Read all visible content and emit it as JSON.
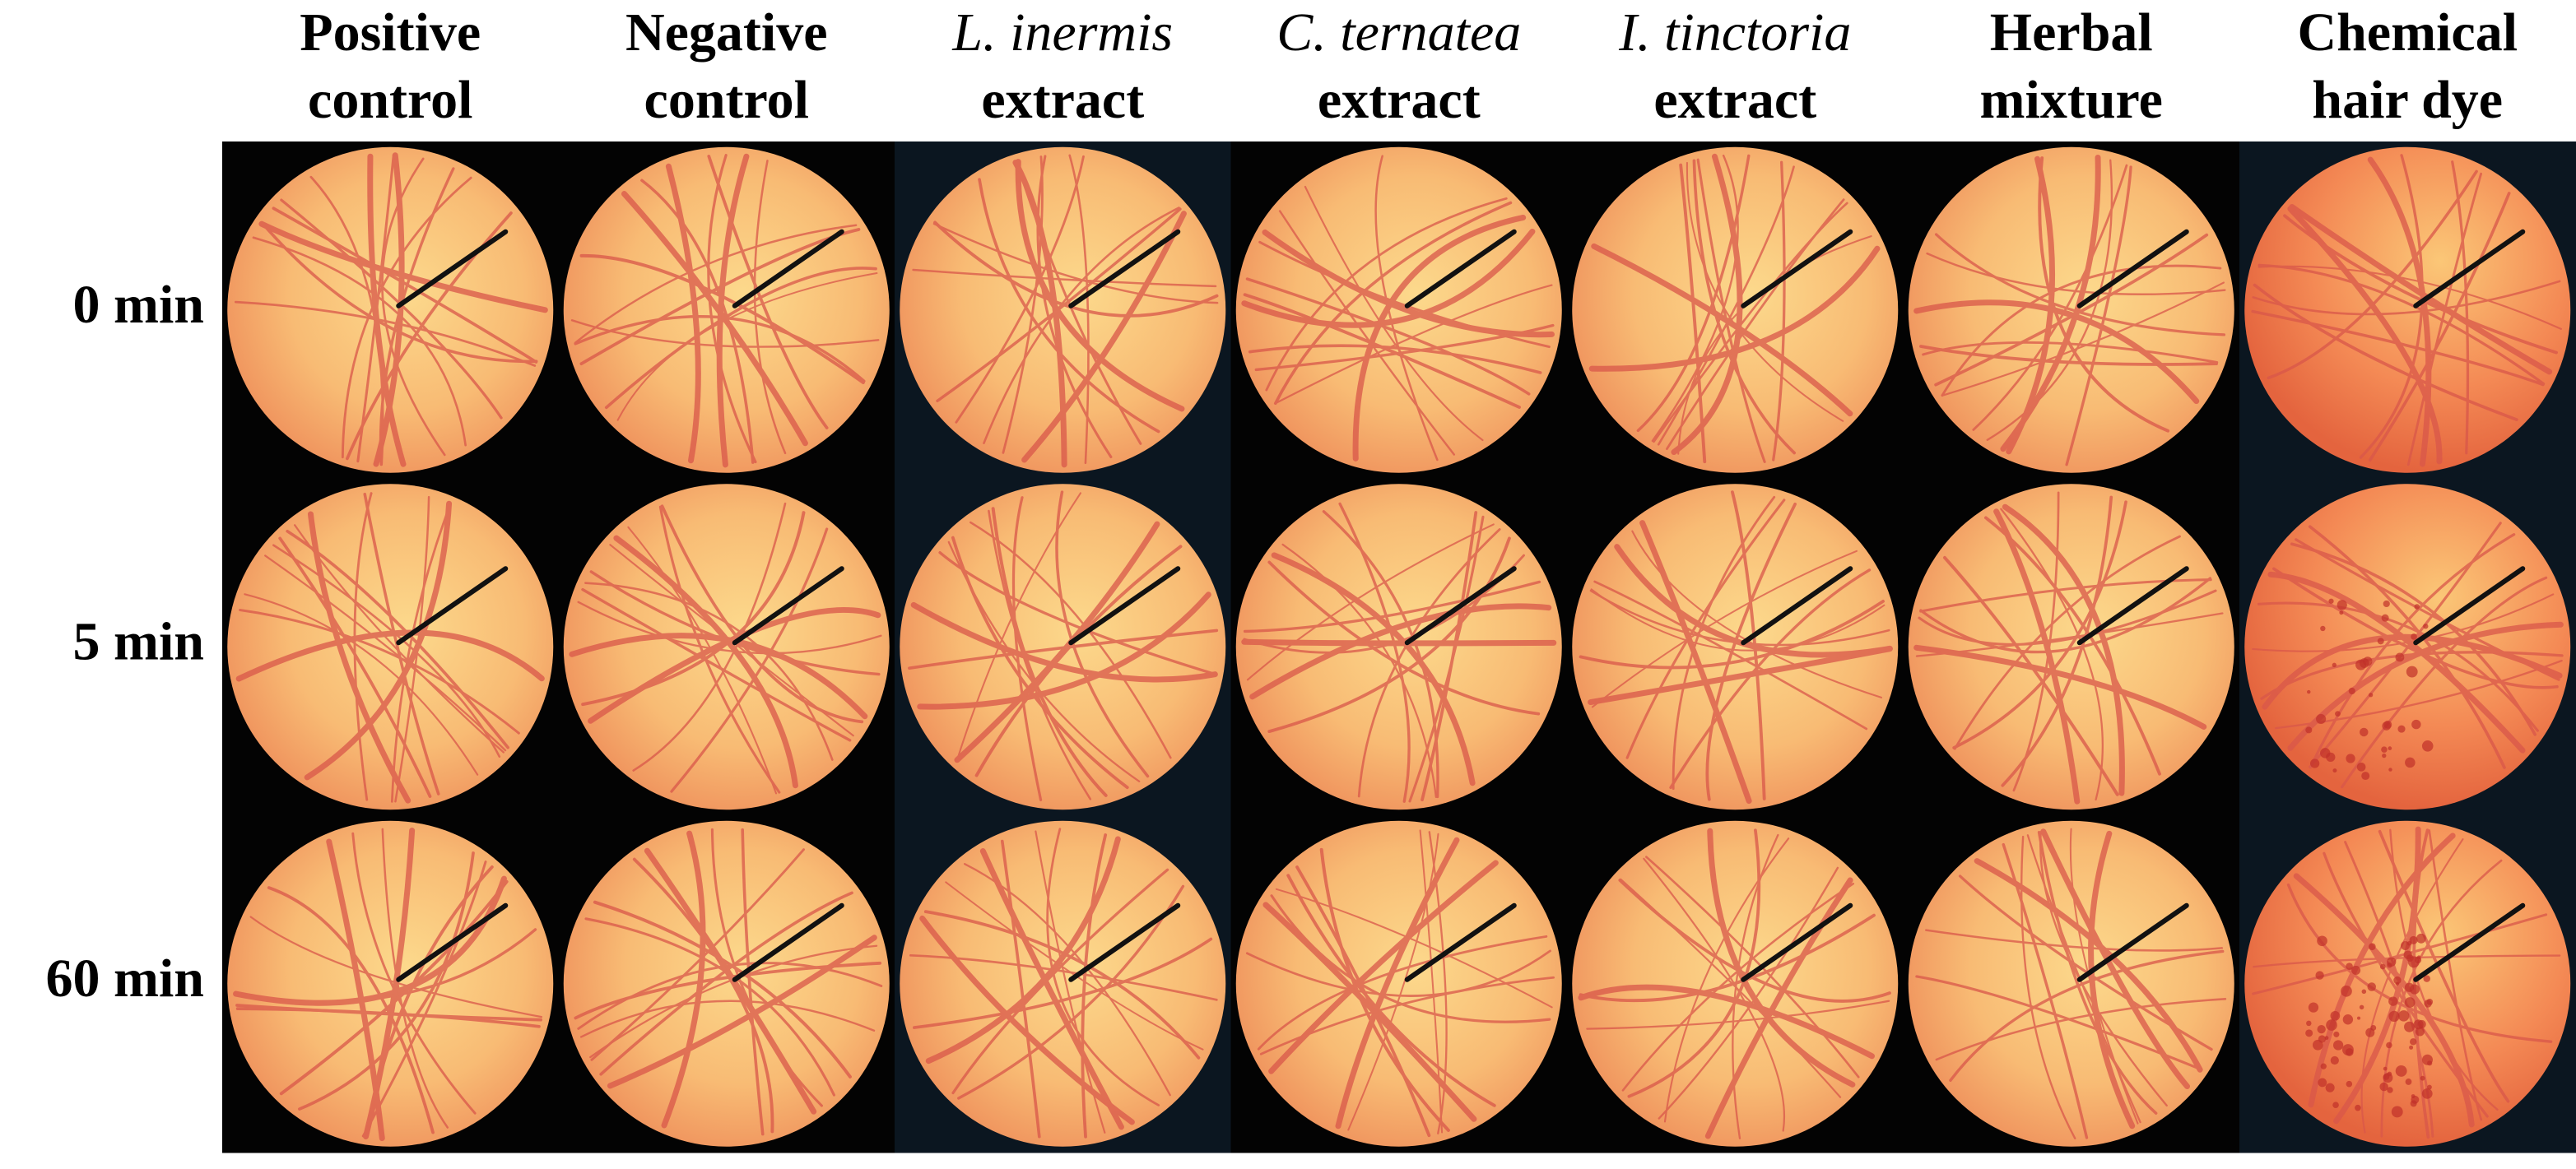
{
  "columns": [
    {
      "lines": [
        "Positive",
        "control"
      ]
    },
    {
      "lines": [
        "Negative",
        "control"
      ]
    },
    {
      "lines": [
        "L. inermis",
        "extract"
      ]
    },
    {
      "lines": [
        "C. ternatea",
        "extract"
      ]
    },
    {
      "lines": [
        "I. tinctoria",
        "extract"
      ]
    },
    {
      "lines": [
        "Herbal",
        "mixture"
      ]
    },
    {
      "lines": [
        "Chemical",
        "hair dye"
      ]
    }
  ],
  "rows": [
    "0 min",
    "5 min",
    "60 min"
  ]
}
